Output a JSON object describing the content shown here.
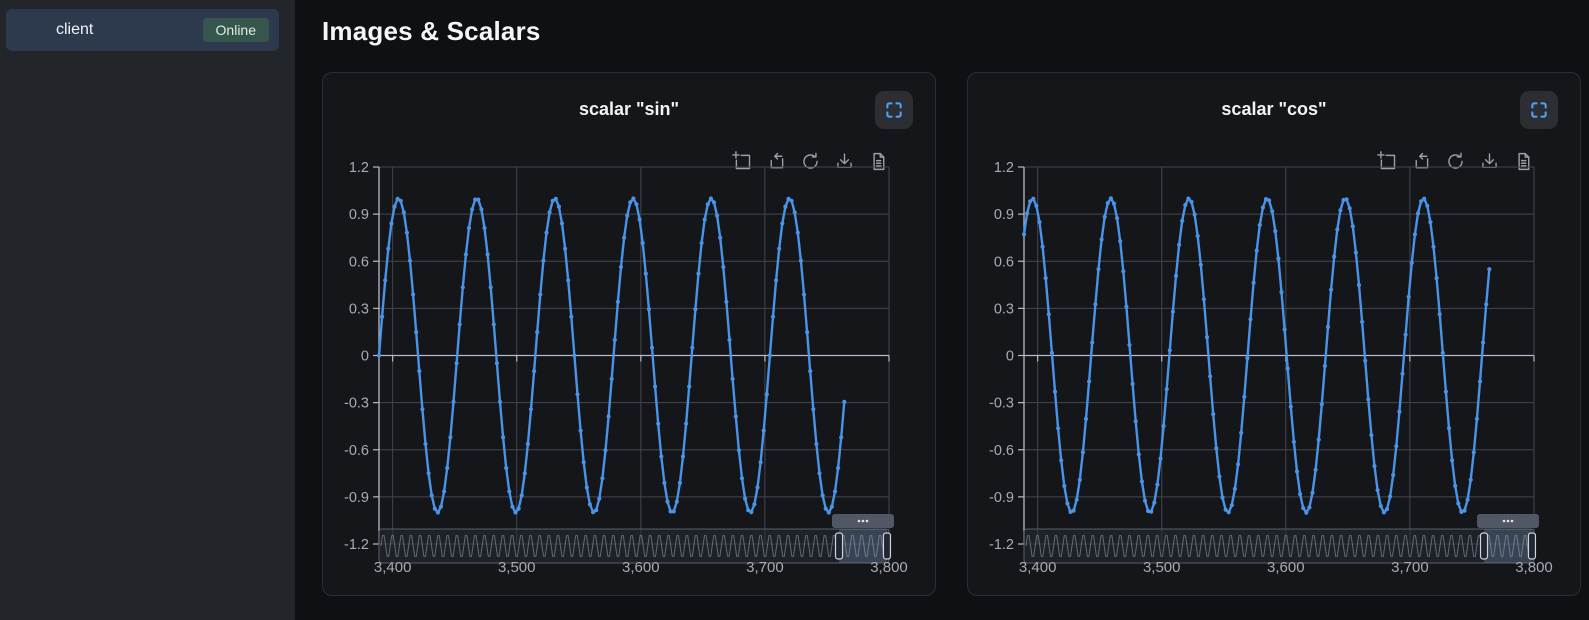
{
  "sidebar": {
    "client_label": "client",
    "status_badge": "Online"
  },
  "header": {
    "title": "Images & Scalars"
  },
  "toolbar_icons": [
    "data-zoom",
    "zoom-reset",
    "restore",
    "save-as-image",
    "data-view"
  ],
  "fullscreen_icon": "fullscreen-expand",
  "colors": {
    "accent_line": "#4a94e8",
    "axis_bright": "#b9b8ce",
    "grid": "#43464d",
    "axis_label": "#a8abb3",
    "fullscreen_icon": "#4f9ded",
    "online_badge_bg": "#36554c",
    "online_badge_text": "#d9efe0",
    "selected_item_bg": "#2d3a4e",
    "slider_border": "#5a5f6a",
    "slider_wave": "rgba(168,178,196,0.5)",
    "slider_window_fill": "rgba(140,175,215,0.25)",
    "slider_handle_stroke": "#cdd3e0"
  },
  "chart_data": [
    {
      "type": "line",
      "title": "scalar \"sin\"",
      "x_range": [
        3389,
        3800
      ],
      "y_range": [
        -1.2,
        1.2
      ],
      "x_ticks": [
        3400,
        3500,
        3600,
        3700,
        3800
      ],
      "x_tick_labels": [
        "3,400",
        "3,500",
        "3,600",
        "3,700",
        "3,800"
      ],
      "y_gridlines": [
        1.2,
        0.9,
        0.6,
        0.3,
        0,
        -0.3,
        -0.6,
        -0.9,
        -1.2
      ],
      "y_tick_labels": [
        "1.2",
        "0.9",
        "0.6",
        "0.3",
        "0",
        "-0.3",
        "-0.6",
        "-0.9",
        "-1.2"
      ],
      "series": [
        {
          "name": "sin",
          "wave": "sin",
          "amplitude": 1,
          "period": 63,
          "phase_rad": 0,
          "x_start": 3389,
          "x_end": 3766,
          "x_step": 2.5,
          "marker": "circle"
        }
      ],
      "datazoom": {
        "window_start": 0.902,
        "window_end": 0.996,
        "full_range_cycles": 55
      },
      "legend": false,
      "grid": true
    },
    {
      "type": "line",
      "title": "scalar \"cos\"",
      "x_range": [
        3389,
        3800
      ],
      "y_range": [
        -1.2,
        1.2
      ],
      "x_ticks": [
        3400,
        3500,
        3600,
        3700,
        3800
      ],
      "x_tick_labels": [
        "3,400",
        "3,500",
        "3,600",
        "3,700",
        "3,800"
      ],
      "y_gridlines": [
        1.2,
        0.9,
        0.6,
        0.3,
        0,
        -0.3,
        -0.6,
        -0.9,
        -1.2
      ],
      "y_tick_labels": [
        "1.2",
        "0.9",
        "0.6",
        "0.3",
        "0",
        "-0.3",
        "-0.6",
        "-0.9",
        "-1.2"
      ],
      "series": [
        {
          "name": "cos",
          "wave": "cos",
          "amplitude": 1,
          "period": 63,
          "phase_rad": -0.69,
          "x_start": 3389,
          "x_end": 3766,
          "x_step": 2.5,
          "marker": "circle"
        }
      ],
      "datazoom": {
        "window_start": 0.902,
        "window_end": 0.996,
        "full_range_cycles": 55
      },
      "legend": false,
      "grid": true
    }
  ]
}
